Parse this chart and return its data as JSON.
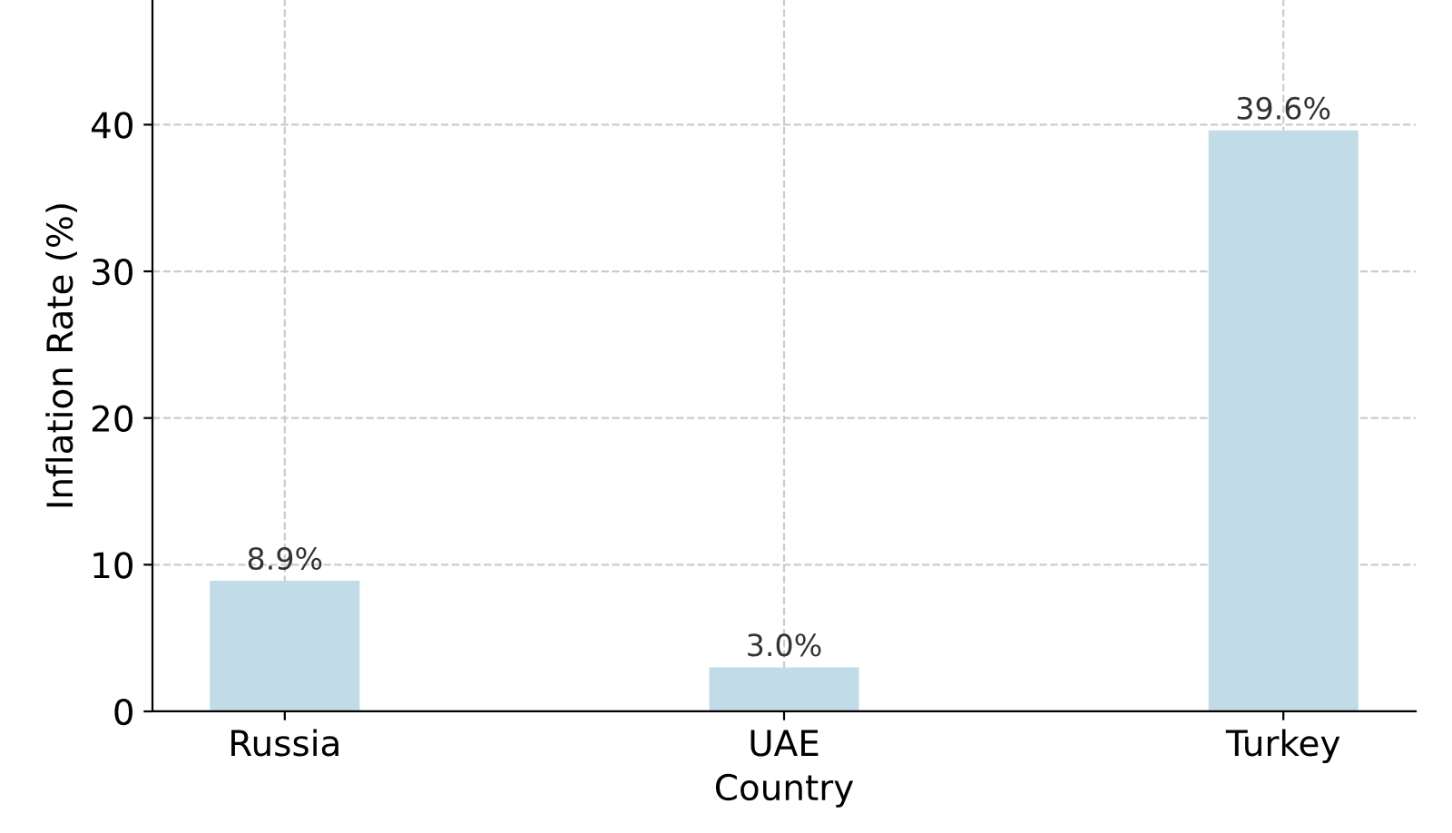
{
  "chart_data": {
    "type": "bar",
    "xlabel": "Country",
    "ylabel": "Inflation Rate (%)",
    "categories": [
      "Russia",
      "UAE",
      "Turkey"
    ],
    "values": [
      8.9,
      3.0,
      39.6
    ],
    "value_labels": [
      "8.9%",
      "3.0%",
      "39.6%"
    ],
    "color": "#c1dce7",
    "ylim": [
      0,
      48.5
    ],
    "yticks": [
      0,
      10,
      20,
      30,
      40
    ],
    "grid": true,
    "line_style": "dashed"
  }
}
